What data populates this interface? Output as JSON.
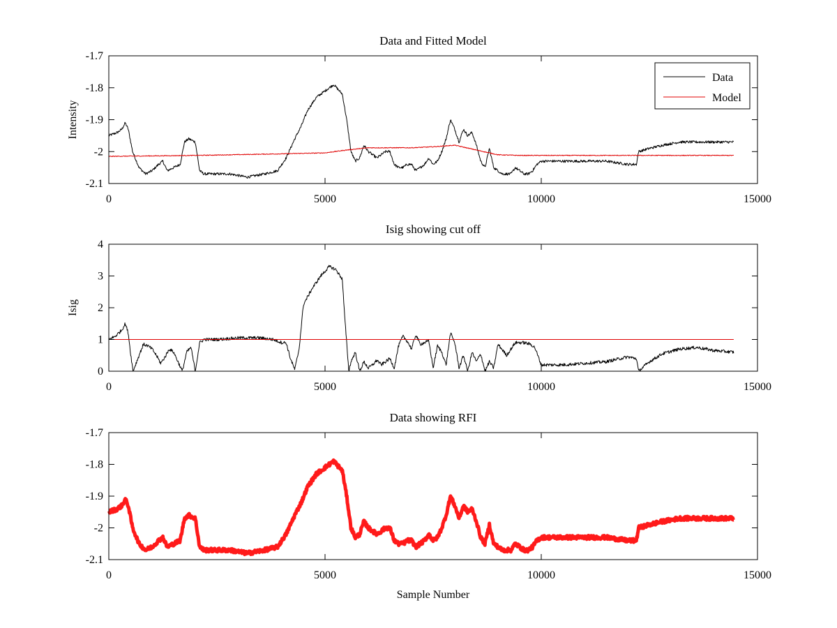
{
  "chart_data": [
    {
      "type": "line",
      "title": "Data and Fitted Model",
      "xlabel": "",
      "ylabel": "Intensity",
      "xlim": [
        0,
        15000
      ],
      "ylim": [
        -2.1,
        -1.7
      ],
      "xticks": [
        0,
        5000,
        10000,
        15000
      ],
      "yticks": [
        -2.1,
        -2,
        -1.9,
        -1.8,
        -1.7
      ],
      "ytick_labels": [
        "-2.1",
        "-2",
        "-1.9",
        "-1.8",
        "-1.7"
      ],
      "grid": false,
      "legend_position": "top-right",
      "series": [
        {
          "name": "Data",
          "color": "#000000",
          "noise": 0.004,
          "x": [
            0,
            200,
            300,
            380,
            450,
            550,
            700,
            850,
            1000,
            1150,
            1250,
            1350,
            1500,
            1650,
            1750,
            1850,
            2000,
            2100,
            2200,
            2500,
            2800,
            3200,
            3600,
            3900,
            4100,
            4300,
            4450,
            4600,
            4800,
            5000,
            5200,
            5400,
            5500,
            5600,
            5700,
            5800,
            5900,
            6000,
            6100,
            6200,
            6400,
            6500,
            6600,
            6700,
            6800,
            6900,
            7000,
            7100,
            7200,
            7300,
            7400,
            7500,
            7600,
            7700,
            7800,
            7900,
            8000,
            8100,
            8200,
            8300,
            8400,
            8500,
            8600,
            8700,
            8800,
            8900,
            9000,
            9100,
            9200,
            9300,
            9400,
            9500,
            9600,
            9700,
            9800,
            9900,
            10000,
            10500,
            11000,
            11500,
            12000,
            12200,
            12250,
            12500,
            12800,
            13200,
            13600,
            14000,
            14450
          ],
          "y": [
            -1.95,
            -1.94,
            -1.93,
            -1.91,
            -1.93,
            -2.0,
            -2.05,
            -2.07,
            -2.06,
            -2.04,
            -2.03,
            -2.06,
            -2.05,
            -2.04,
            -1.97,
            -1.96,
            -1.97,
            -2.06,
            -2.07,
            -2.07,
            -2.07,
            -2.08,
            -2.07,
            -2.06,
            -2.02,
            -1.96,
            -1.92,
            -1.87,
            -1.83,
            -1.81,
            -1.79,
            -1.82,
            -1.9,
            -2.0,
            -2.03,
            -2.02,
            -1.98,
            -2.0,
            -2.01,
            -2.02,
            -2.0,
            -2.0,
            -2.04,
            -2.05,
            -2.05,
            -2.04,
            -2.04,
            -2.06,
            -2.05,
            -2.04,
            -2.02,
            -2.04,
            -2.03,
            -2.0,
            -1.96,
            -1.9,
            -1.93,
            -1.97,
            -1.93,
            -1.95,
            -1.94,
            -1.98,
            -2.03,
            -2.05,
            -1.99,
            -2.05,
            -2.06,
            -2.07,
            -2.07,
            -2.07,
            -2.05,
            -2.06,
            -2.07,
            -2.07,
            -2.06,
            -2.04,
            -2.03,
            -2.03,
            -2.03,
            -2.03,
            -2.04,
            -2.04,
            -2.0,
            -1.99,
            -1.98,
            -1.97,
            -1.97,
            -1.97,
            -1.97
          ]
        },
        {
          "name": "Model",
          "color": "#e00000",
          "noise": 0.0012,
          "x": [
            0,
            2000,
            4000,
            5000,
            5500,
            6000,
            6500,
            7000,
            7500,
            8000,
            8500,
            9000,
            9500,
            10000,
            12000,
            14450
          ],
          "y": [
            -2.015,
            -2.012,
            -2.007,
            -2.004,
            -1.995,
            -1.988,
            -1.988,
            -1.988,
            -1.985,
            -1.98,
            -1.995,
            -2.01,
            -2.012,
            -2.012,
            -2.012,
            -2.012
          ]
        }
      ]
    },
    {
      "type": "line",
      "title": "Isig showing cut off",
      "xlabel": "",
      "ylabel": "Isig",
      "xlim": [
        0,
        15000
      ],
      "ylim": [
        0,
        4
      ],
      "xticks": [
        0,
        5000,
        10000,
        15000
      ],
      "yticks": [
        0,
        1,
        2,
        3,
        4
      ],
      "ytick_labels": [
        "0",
        "1",
        "2",
        "3",
        "4"
      ],
      "grid": false,
      "series": [
        {
          "name": "",
          "color": "#000000",
          "noise": 0.05,
          "x": [
            0,
            150,
            300,
            380,
            450,
            500,
            560,
            700,
            800,
            900,
            1000,
            1100,
            1200,
            1300,
            1400,
            1500,
            1600,
            1700,
            1800,
            1900,
            2000,
            2100,
            2200,
            2500,
            3000,
            3500,
            3800,
            4000,
            4100,
            4200,
            4300,
            4400,
            4500,
            4700,
            4900,
            5100,
            5250,
            5400,
            5450,
            5550,
            5600,
            5700,
            5800,
            5900,
            6000,
            6100,
            6200,
            6300,
            6400,
            6500,
            6600,
            6700,
            6800,
            6900,
            7000,
            7100,
            7200,
            7300,
            7400,
            7500,
            7600,
            7700,
            7800,
            7900,
            8000,
            8100,
            8200,
            8300,
            8400,
            8500,
            8600,
            8700,
            8800,
            8900,
            9000,
            9200,
            9400,
            9600,
            9750,
            9850,
            10000,
            10500,
            11000,
            11500,
            12000,
            12200,
            12250,
            12500,
            12800,
            13200,
            13600,
            14000,
            14450
          ],
          "y": [
            1.0,
            1.1,
            1.3,
            1.5,
            1.2,
            0.6,
            0.0,
            0.5,
            0.85,
            0.8,
            0.7,
            0.5,
            0.25,
            0.45,
            0.7,
            0.6,
            0.3,
            0.0,
            0.6,
            0.75,
            0.0,
            0.9,
            1.0,
            1.0,
            1.05,
            1.05,
            1.0,
            0.9,
            0.9,
            0.4,
            0.05,
            0.7,
            2.1,
            2.6,
            3.0,
            3.3,
            3.2,
            2.9,
            1.8,
            0.0,
            0.3,
            0.6,
            0.0,
            0.3,
            0.1,
            0.2,
            0.35,
            0.2,
            0.3,
            0.4,
            0.1,
            0.8,
            1.1,
            0.95,
            0.7,
            1.15,
            0.85,
            0.9,
            0.95,
            0.1,
            0.8,
            0.6,
            0.2,
            1.2,
            0.9,
            0.1,
            0.5,
            0.0,
            0.6,
            0.3,
            0.55,
            0.0,
            0.3,
            0.1,
            0.85,
            0.5,
            0.9,
            0.9,
            0.85,
            0.75,
            0.2,
            0.2,
            0.25,
            0.3,
            0.45,
            0.4,
            0.0,
            0.3,
            0.55,
            0.7,
            0.75,
            0.65,
            0.6
          ]
        },
        {
          "name": "",
          "color": "#e00000",
          "noise": 0,
          "x": [
            0,
            14450
          ],
          "y": [
            1.0,
            1.0
          ]
        }
      ]
    },
    {
      "type": "line",
      "title": "Data showing RFI",
      "xlabel": "Sample Number",
      "ylabel": "",
      "xlim": [
        0,
        15000
      ],
      "ylim": [
        -2.1,
        -1.7
      ],
      "xticks": [
        0,
        5000,
        10000,
        15000
      ],
      "yticks": [
        -2.1,
        -2,
        -1.9,
        -1.8,
        -1.7
      ],
      "ytick_labels": [
        "-2.1",
        "-2",
        "-1.9",
        "-1.8",
        "-1.7"
      ],
      "grid": false,
      "series": [
        {
          "name": "",
          "color": "#ff1a1a",
          "noise": 0.006,
          "thick": true,
          "x": [
            0,
            200,
            300,
            380,
            450,
            550,
            700,
            850,
            1000,
            1150,
            1250,
            1350,
            1500,
            1650,
            1750,
            1850,
            2000,
            2100,
            2200,
            2500,
            2800,
            3200,
            3600,
            3900,
            4100,
            4300,
            4450,
            4600,
            4800,
            5000,
            5200,
            5400,
            5500,
            5600,
            5700,
            5800,
            5900,
            6000,
            6100,
            6200,
            6400,
            6500,
            6600,
            6700,
            6800,
            6900,
            7000,
            7100,
            7200,
            7300,
            7400,
            7500,
            7600,
            7700,
            7800,
            7900,
            8000,
            8100,
            8200,
            8300,
            8400,
            8500,
            8600,
            8700,
            8800,
            8900,
            9000,
            9100,
            9200,
            9300,
            9400,
            9500,
            9600,
            9700,
            9800,
            9900,
            10000,
            10500,
            11000,
            11500,
            12000,
            12200,
            12250,
            12500,
            12800,
            13200,
            13600,
            14000,
            14450
          ],
          "y": [
            -1.95,
            -1.94,
            -1.93,
            -1.91,
            -1.93,
            -2.0,
            -2.05,
            -2.07,
            -2.06,
            -2.04,
            -2.03,
            -2.06,
            -2.05,
            -2.04,
            -1.97,
            -1.96,
            -1.97,
            -2.06,
            -2.07,
            -2.07,
            -2.07,
            -2.08,
            -2.07,
            -2.06,
            -2.02,
            -1.96,
            -1.92,
            -1.87,
            -1.83,
            -1.81,
            -1.79,
            -1.82,
            -1.9,
            -2.0,
            -2.03,
            -2.02,
            -1.98,
            -2.0,
            -2.01,
            -2.02,
            -2.0,
            -2.0,
            -2.04,
            -2.05,
            -2.05,
            -2.04,
            -2.04,
            -2.06,
            -2.05,
            -2.04,
            -2.02,
            -2.04,
            -2.03,
            -2.0,
            -1.96,
            -1.9,
            -1.93,
            -1.97,
            -1.93,
            -1.95,
            -1.94,
            -1.98,
            -2.03,
            -2.05,
            -1.99,
            -2.05,
            -2.06,
            -2.07,
            -2.07,
            -2.07,
            -2.05,
            -2.06,
            -2.07,
            -2.07,
            -2.06,
            -2.04,
            -2.03,
            -2.03,
            -2.03,
            -2.03,
            -2.04,
            -2.04,
            -2.0,
            -1.99,
            -1.98,
            -1.97,
            -1.97,
            -1.97,
            -1.97
          ]
        }
      ]
    }
  ]
}
